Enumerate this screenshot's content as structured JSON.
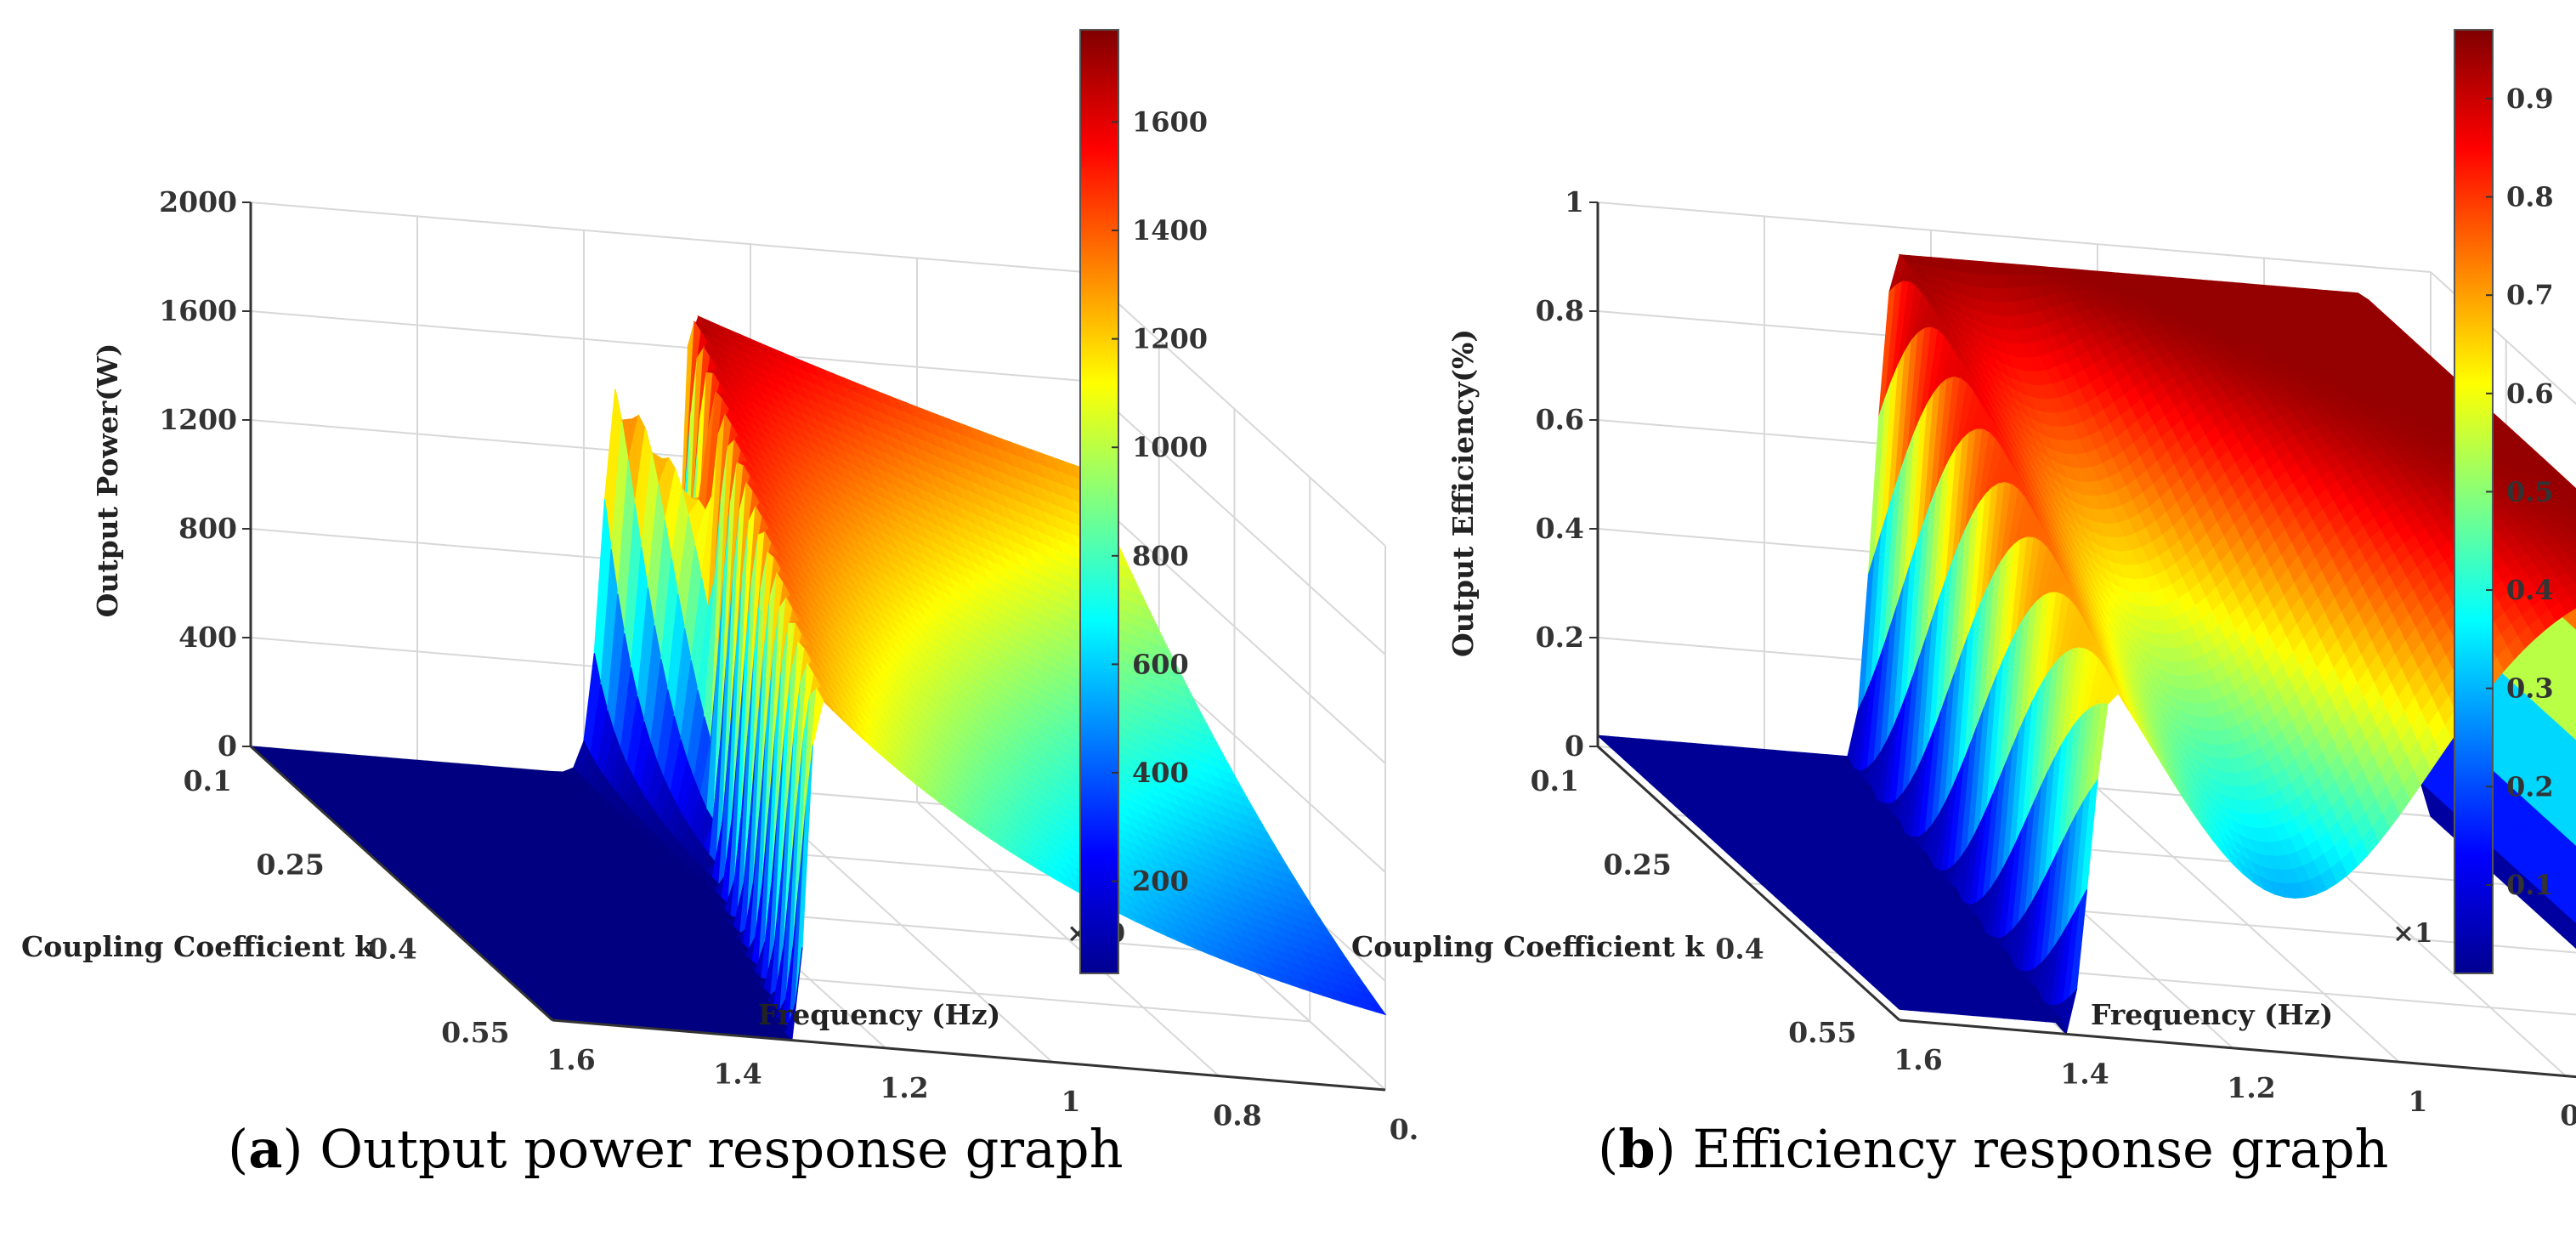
{
  "chart_data": [
    {
      "type": "surface",
      "panel": "a",
      "caption_letter": "a",
      "caption_text": "Output power response graph",
      "zlabel": "Output Power(W)",
      "xlabel": "Coupling Coefficient k",
      "ylabel": "Frequency (Hz)",
      "z_ticks": [
        "0",
        "400",
        "800",
        "1200",
        "1600",
        "2000"
      ],
      "k_ticks": [
        "0.1",
        "0.25",
        "0.4",
        "0.55"
      ],
      "f_ticks": [
        "1.6",
        "1.4",
        "1.2",
        "1",
        "0.8",
        "0."
      ],
      "exp_label": "×10",
      "colorbar_ticks": [
        "200",
        "400",
        "600",
        "800",
        "1000",
        "1200",
        "1400",
        "1600"
      ],
      "colorbar_range": [
        30,
        1770
      ],
      "zlim": [
        0,
        2000
      ],
      "colormap": "jet",
      "peak_max": 1770,
      "peak_at_low_k": 1450
    },
    {
      "type": "surface",
      "panel": "b",
      "caption_letter": "b",
      "caption_text": "Efficiency response graph",
      "zlabel": "Output Efficiency(%)",
      "xlabel": "Coupling Coefficient k",
      "ylabel": "Frequency (Hz)",
      "z_ticks": [
        "0",
        "0.2",
        "0.4",
        "0.6",
        "0.8",
        "1"
      ],
      "k_ticks": [
        "0.1",
        "0.25",
        "0.4",
        "0.55"
      ],
      "f_ticks": [
        "1.6",
        "1.4",
        "1.2",
        "1",
        "0.8",
        "0."
      ],
      "exp_label": "×1",
      "colorbar_ticks": [
        "0.1",
        "0.2",
        "0.3",
        "0.4",
        "0.5",
        "0.6",
        "0.7",
        "0.8",
        "0.9"
      ],
      "colorbar_range": [
        0.01,
        0.97
      ],
      "zlim": [
        0,
        1
      ],
      "colormap": "jet",
      "peak_max": 0.97,
      "valley_min": 0.3
    }
  ]
}
